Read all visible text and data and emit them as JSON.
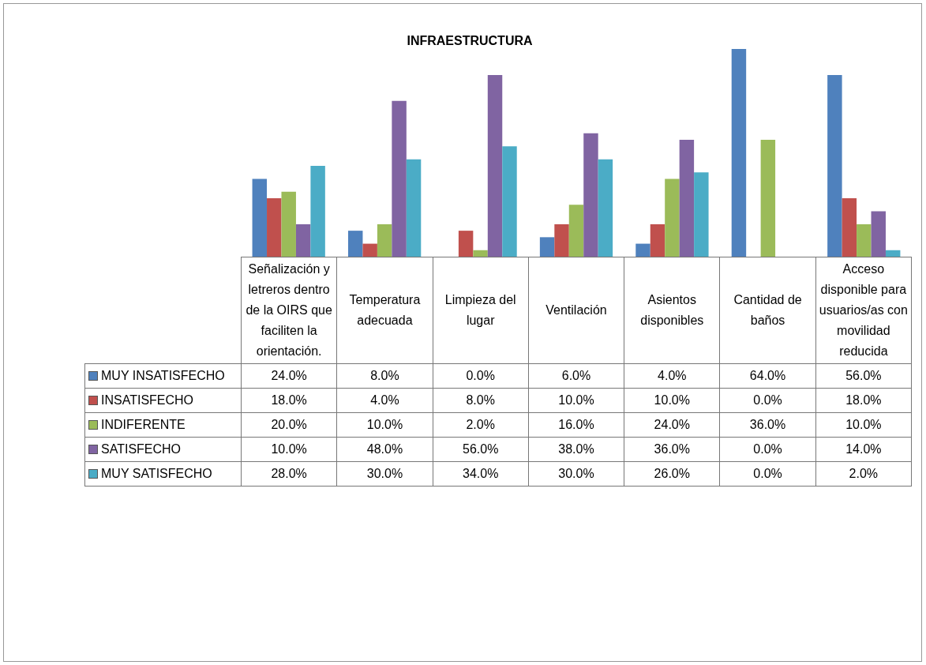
{
  "chart_data": {
    "type": "bar",
    "title": "INFRAESTRUCTURA",
    "categories": [
      "Señalización y letreros dentro de la OIRS que faciliten la orientación.",
      "Temperatura adecuada",
      "Limpieza del lugar",
      "Ventilación",
      "Asientos disponibles",
      "Cantidad de baños",
      "Acceso disponible para usuarios/as con movilidad reducida"
    ],
    "series": [
      {
        "name": "MUY INSATISFECHO",
        "color": "#4f81bd",
        "values": [
          24,
          8,
          0,
          6,
          4,
          64,
          56
        ],
        "value_labels": [
          "24.0%",
          "8.0%",
          "0.0%",
          "6.0%",
          "4.0%",
          "64.0%",
          "56.0%"
        ]
      },
      {
        "name": "INSATISFECHO",
        "color": "#c0504d",
        "values": [
          18,
          4,
          8,
          10,
          10,
          0,
          18
        ],
        "value_labels": [
          "18.0%",
          "4.0%",
          "8.0%",
          "10.0%",
          "10.0%",
          "0.0%",
          "18.0%"
        ]
      },
      {
        "name": "INDIFERENTE",
        "color": "#9bbb59",
        "values": [
          20,
          10,
          2,
          16,
          24,
          36,
          10
        ],
        "value_labels": [
          "20.0%",
          "10.0%",
          "2.0%",
          "16.0%",
          "24.0%",
          "36.0%",
          "10.0%"
        ]
      },
      {
        "name": "SATISFECHO",
        "color": "#8064a2",
        "values": [
          10,
          48,
          56,
          38,
          36,
          0,
          14
        ],
        "value_labels": [
          "10.0%",
          "48.0%",
          "56.0%",
          "38.0%",
          "36.0%",
          "0.0%",
          "14.0%"
        ]
      },
      {
        "name": "MUY SATISFECHO",
        "color": "#4bacc6",
        "values": [
          28,
          30,
          34,
          30,
          26,
          0,
          2
        ],
        "value_labels": [
          "28.0%",
          "30.0%",
          "34.0%",
          "30.0%",
          "26.0%",
          "0.0%",
          "2.0%"
        ]
      }
    ],
    "legend": "bottom left"
  }
}
